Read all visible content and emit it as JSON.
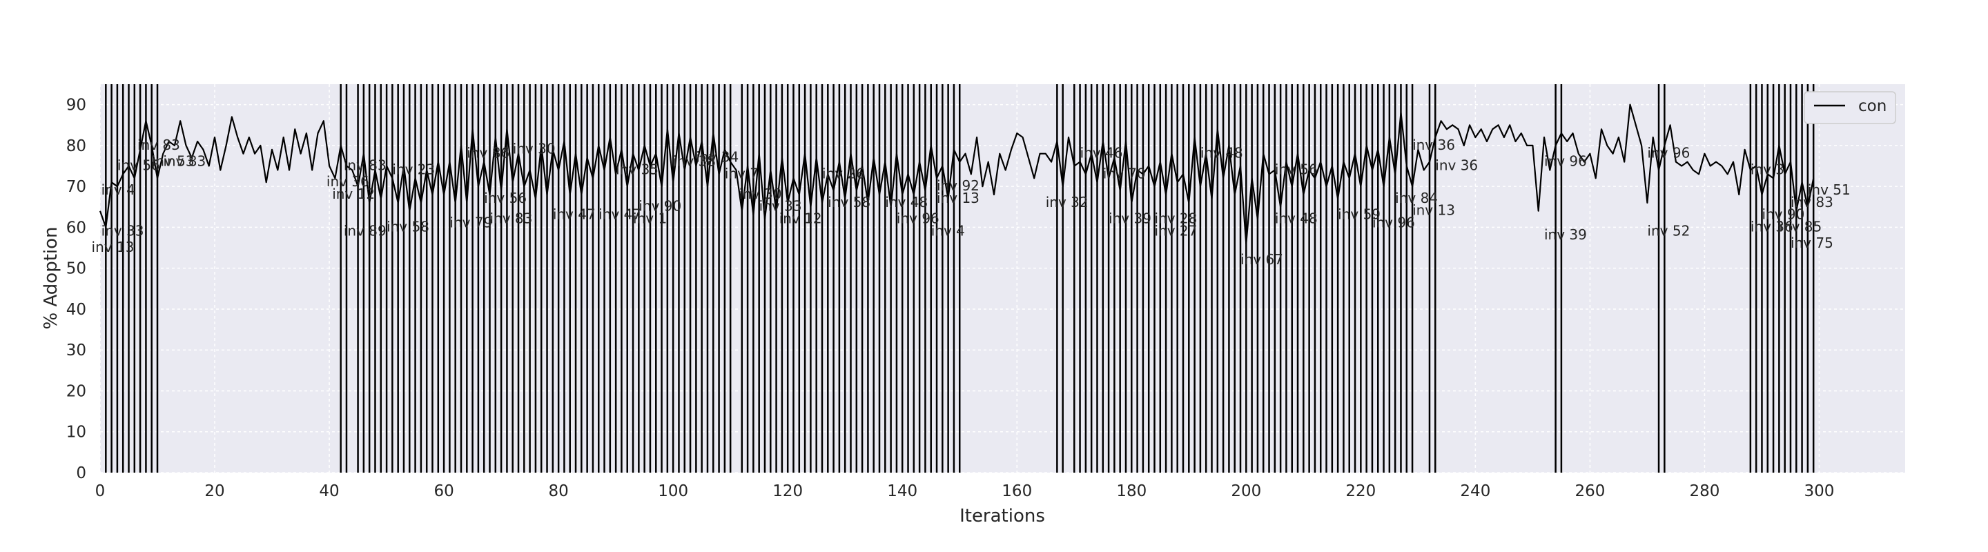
{
  "chart_data": {
    "type": "line",
    "xlabel": "Iterations",
    "ylabel": "% Adoption",
    "xlim": [
      0,
      315
    ],
    "ylim": [
      0,
      95
    ],
    "xticks": [
      0,
      20,
      40,
      60,
      80,
      100,
      120,
      140,
      160,
      180,
      200,
      220,
      240,
      260,
      280,
      300
    ],
    "yticks": [
      0,
      10,
      20,
      30,
      40,
      50,
      60,
      70,
      80,
      90
    ],
    "grid": true,
    "legend_position": "top-right",
    "series": [
      {
        "name": "con",
        "color": "#000000",
        "x": [
          0,
          1,
          2,
          3,
          4,
          5,
          6,
          7,
          8,
          9,
          10,
          11,
          12,
          13,
          14,
          15,
          16,
          17,
          18,
          19,
          20,
          21,
          22,
          23,
          24,
          25,
          26,
          27,
          28,
          29,
          30,
          31,
          32,
          33,
          34,
          35,
          36,
          37,
          38,
          39,
          40,
          41,
          42,
          43,
          44,
          45,
          46,
          47,
          48,
          49,
          50,
          51,
          52,
          53,
          54,
          55,
          56,
          57,
          58,
          59,
          60,
          61,
          62,
          63,
          64,
          65,
          66,
          67,
          68,
          69,
          70,
          71,
          72,
          73,
          74,
          75,
          76,
          77,
          78,
          79,
          80,
          81,
          82,
          83,
          84,
          85,
          86,
          87,
          88,
          89,
          90,
          91,
          92,
          93,
          94,
          95,
          96,
          97,
          98,
          99,
          100,
          101,
          102,
          103,
          104,
          105,
          106,
          107,
          108,
          109,
          110,
          111,
          112,
          113,
          114,
          115,
          116,
          117,
          118,
          119,
          120,
          121,
          122,
          123,
          124,
          125,
          126,
          127,
          128,
          129,
          130,
          131,
          132,
          133,
          134,
          135,
          136,
          137,
          138,
          139,
          140,
          141,
          142,
          143,
          144,
          145,
          146,
          147,
          148,
          149,
          150,
          151,
          152,
          153,
          154,
          155,
          156,
          157,
          158,
          159,
          160,
          161,
          162,
          163,
          164,
          165,
          166,
          167,
          168,
          169,
          170,
          171,
          172,
          173,
          174,
          175,
          176,
          177,
          178,
          179,
          180,
          181,
          182,
          183,
          184,
          185,
          186,
          187,
          188,
          189,
          190,
          191,
          192,
          193,
          194,
          195,
          196,
          197,
          198,
          199,
          200,
          201,
          202,
          203,
          204,
          205,
          206,
          207,
          208,
          209,
          210,
          211,
          212,
          213,
          214,
          215,
          216,
          217,
          218,
          219,
          220,
          221,
          222,
          223,
          224,
          225,
          226,
          227,
          228,
          229,
          230,
          231,
          232,
          233,
          234,
          235,
          236,
          237,
          238,
          239,
          240,
          241,
          242,
          243,
          244,
          245,
          246,
          247,
          248,
          249,
          250,
          251,
          252,
          253,
          254,
          255,
          256,
          257,
          258,
          259,
          260,
          261,
          262,
          263,
          264,
          265,
          266,
          267,
          268,
          269,
          270,
          271,
          272,
          273,
          274,
          275,
          276,
          277,
          278,
          279,
          280,
          281,
          282,
          283,
          284,
          285,
          286,
          287,
          288,
          289,
          290,
          291,
          292,
          293,
          294,
          295,
          296,
          297,
          298,
          299
        ],
        "y": [
          64,
          60,
          71,
          70,
          73,
          75,
          72,
          79,
          86,
          80,
          72,
          78,
          81,
          80,
          86,
          80,
          77,
          81,
          79,
          75,
          82,
          74,
          80,
          87,
          82,
          78,
          82,
          78,
          80,
          71,
          79,
          74,
          82,
          74,
          84,
          78,
          83,
          74,
          83,
          86,
          75,
          72,
          80,
          75,
          74,
          70,
          78,
          66,
          74,
          67,
          75,
          72,
          66,
          75,
          64,
          72,
          66,
          74,
          68,
          76,
          68,
          76,
          66,
          80,
          66,
          84,
          70,
          76,
          68,
          82,
          69,
          84,
          71,
          78,
          70,
          74,
          67,
          80,
          68,
          79,
          74,
          81,
          68,
          78,
          68,
          77,
          72,
          80,
          74,
          82,
          73,
          79,
          70,
          78,
          74,
          80,
          75,
          78,
          70,
          84,
          71,
          83,
          74,
          82,
          75,
          81,
          70,
          83,
          73,
          79,
          76,
          74,
          64,
          75,
          63,
          78,
          62,
          74,
          64,
          77,
          66,
          72,
          68,
          78,
          65,
          77,
          66,
          73,
          69,
          76,
          67,
          78,
          69,
          75,
          66,
          77,
          68,
          76,
          65,
          78,
          68,
          73,
          68,
          76,
          69,
          80,
          72,
          75,
          67,
          79,
          76,
          78,
          73,
          82,
          70,
          76,
          68,
          78,
          74,
          79,
          83,
          82,
          77,
          72,
          78,
          78,
          76,
          81,
          70,
          82,
          75,
          76,
          73,
          78,
          71,
          81,
          72,
          77,
          69,
          81,
          66,
          74,
          73,
          75,
          70,
          76,
          68,
          78,
          71,
          73,
          66,
          82,
          70,
          78,
          67,
          84,
          72,
          80,
          68,
          75,
          56,
          72,
          62,
          78,
          73,
          74,
          65,
          76,
          70,
          78,
          68,
          74,
          72,
          76,
          70,
          75,
          67,
          76,
          72,
          78,
          70,
          80,
          74,
          79,
          70,
          82,
          73,
          88,
          75,
          70,
          79,
          74,
          76,
          82,
          86,
          84,
          85,
          84,
          80,
          85,
          82,
          84,
          81,
          84,
          85,
          82,
          85,
          81,
          83,
          80,
          80,
          64,
          82,
          74,
          80,
          83,
          81,
          83,
          78,
          76,
          78,
          72,
          84,
          80,
          78,
          82,
          76,
          90,
          85,
          80,
          66,
          82,
          74,
          80,
          85,
          76,
          75,
          76,
          74,
          73,
          78,
          75,
          76,
          75,
          73,
          76,
          68,
          79,
          74,
          75,
          68,
          73,
          72,
          80,
          73,
          76,
          64,
          71,
          65,
          72
        ]
      }
    ],
    "vertical_lines_x": [
      1,
      2,
      3,
      4,
      5,
      6,
      7,
      8,
      9,
      10,
      42,
      43,
      45,
      46,
      47,
      48,
      49,
      50,
      51,
      52,
      53,
      54,
      55,
      56,
      57,
      58,
      59,
      60,
      61,
      62,
      63,
      64,
      65,
      66,
      67,
      68,
      69,
      70,
      71,
      72,
      73,
      74,
      75,
      76,
      77,
      78,
      79,
      80,
      81,
      82,
      83,
      84,
      85,
      86,
      87,
      88,
      89,
      90,
      91,
      92,
      93,
      94,
      95,
      96,
      97,
      98,
      99,
      100,
      101,
      102,
      103,
      104,
      105,
      106,
      107,
      108,
      109,
      110,
      112,
      113,
      114,
      115,
      116,
      117,
      118,
      119,
      120,
      121,
      122,
      123,
      124,
      125,
      126,
      127,
      128,
      129,
      130,
      131,
      132,
      133,
      134,
      135,
      136,
      137,
      138,
      139,
      140,
      141,
      142,
      143,
      144,
      145,
      146,
      147,
      148,
      149,
      150,
      167,
      168,
      170,
      171,
      172,
      173,
      174,
      175,
      176,
      177,
      178,
      179,
      180,
      181,
      182,
      183,
      184,
      185,
      186,
      187,
      188,
      189,
      190,
      191,
      192,
      193,
      194,
      195,
      196,
      197,
      198,
      199,
      200,
      201,
      202,
      203,
      204,
      205,
      206,
      207,
      208,
      209,
      210,
      211,
      212,
      213,
      214,
      215,
      216,
      217,
      218,
      219,
      220,
      221,
      222,
      223,
      224,
      225,
      226,
      227,
      228,
      229,
      232,
      233,
      254,
      255,
      272,
      273,
      288,
      289,
      290,
      291,
      292,
      293,
      294,
      295,
      296,
      297,
      298,
      299
    ],
    "annotations": [
      {
        "text": "inv 33",
        "x": 0.2,
        "y": 58
      },
      {
        "text": "inv 13",
        "x": -1.5,
        "y": 54
      },
      {
        "text": "inv 83",
        "x": 6.5,
        "y": 79
      },
      {
        "text": "inv 56",
        "x": 3,
        "y": 74
      },
      {
        "text": "inv 4",
        "x": 0.2,
        "y": 68
      },
      {
        "text": "inv 53",
        "x": 9,
        "y": 75
      },
      {
        "text": "inv 83",
        "x": 11,
        "y": 75
      },
      {
        "text": "inv 83",
        "x": 42.5,
        "y": 74
      },
      {
        "text": "inv 12",
        "x": 40.5,
        "y": 67
      },
      {
        "text": "inv 36",
        "x": 39.5,
        "y": 70
      },
      {
        "text": "inv 89",
        "x": 42.5,
        "y": 58
      },
      {
        "text": "inv 58",
        "x": 50,
        "y": 59
      },
      {
        "text": "inv 23",
        "x": 51,
        "y": 73
      },
      {
        "text": "inv 79",
        "x": 61,
        "y": 60
      },
      {
        "text": "inv 83",
        "x": 68,
        "y": 61
      },
      {
        "text": "inv 86",
        "x": 64,
        "y": 77
      },
      {
        "text": "inv 30",
        "x": 72,
        "y": 78
      },
      {
        "text": "inv 56",
        "x": 67,
        "y": 66
      },
      {
        "text": "inv 47",
        "x": 79,
        "y": 62
      },
      {
        "text": "inv 47",
        "x": 87,
        "y": 62
      },
      {
        "text": "inv 35",
        "x": 90,
        "y": 73
      },
      {
        "text": "inv 90",
        "x": 94,
        "y": 64
      },
      {
        "text": "inv 1",
        "x": 93,
        "y": 61
      },
      {
        "text": "inv 38",
        "x": 100,
        "y": 75
      },
      {
        "text": "inv 34",
        "x": 104,
        "y": 76
      },
      {
        "text": "inv 7",
        "x": 109,
        "y": 72
      },
      {
        "text": "inv 30",
        "x": 111.5,
        "y": 67
      },
      {
        "text": "inv 33",
        "x": 115,
        "y": 64
      },
      {
        "text": "inv 12",
        "x": 118.5,
        "y": 61
      },
      {
        "text": "inv 26",
        "x": 126,
        "y": 72
      },
      {
        "text": "inv 58",
        "x": 127,
        "y": 65
      },
      {
        "text": "inv 96",
        "x": 139,
        "y": 61
      },
      {
        "text": "inv 48",
        "x": 137,
        "y": 65
      },
      {
        "text": "inv 92",
        "x": 146,
        "y": 69
      },
      {
        "text": "inv 13",
        "x": 146,
        "y": 66
      },
      {
        "text": "inv 4",
        "x": 145,
        "y": 58
      },
      {
        "text": "inv 32",
        "x": 165,
        "y": 65
      },
      {
        "text": "inv 46",
        "x": 171,
        "y": 77
      },
      {
        "text": "inv 70",
        "x": 175,
        "y": 72
      },
      {
        "text": "inv 39",
        "x": 176,
        "y": 61
      },
      {
        "text": "inv 27",
        "x": 184,
        "y": 58
      },
      {
        "text": "inv 28",
        "x": 184,
        "y": 61
      },
      {
        "text": "inv 48",
        "x": 192,
        "y": 77
      },
      {
        "text": "inv 67",
        "x": 199,
        "y": 51
      },
      {
        "text": "inv 48",
        "x": 205,
        "y": 61
      },
      {
        "text": "inv 56",
        "x": 205,
        "y": 73
      },
      {
        "text": "inv 59",
        "x": 216,
        "y": 62
      },
      {
        "text": "inv 96",
        "x": 222,
        "y": 60
      },
      {
        "text": "inv 84",
        "x": 226,
        "y": 66
      },
      {
        "text": "inv 13",
        "x": 229,
        "y": 63
      },
      {
        "text": "inv 36",
        "x": 229,
        "y": 79
      },
      {
        "text": "inv 36",
        "x": 233,
        "y": 74
      },
      {
        "text": "inv 39",
        "x": 252,
        "y": 57
      },
      {
        "text": "inv 96",
        "x": 252,
        "y": 75
      },
      {
        "text": "inv 52",
        "x": 270,
        "y": 58
      },
      {
        "text": "inv 96",
        "x": 270,
        "y": 77
      },
      {
        "text": "inv 3",
        "x": 288,
        "y": 73
      },
      {
        "text": "inv 51",
        "x": 298,
        "y": 68
      },
      {
        "text": "inv 83",
        "x": 295,
        "y": 65
      },
      {
        "text": "inv 90",
        "x": 290,
        "y": 62
      },
      {
        "text": "inv 36",
        "x": 288,
        "y": 59
      },
      {
        "text": "inv 85",
        "x": 293,
        "y": 59
      },
      {
        "text": "inv 75",
        "x": 295,
        "y": 55
      }
    ]
  }
}
